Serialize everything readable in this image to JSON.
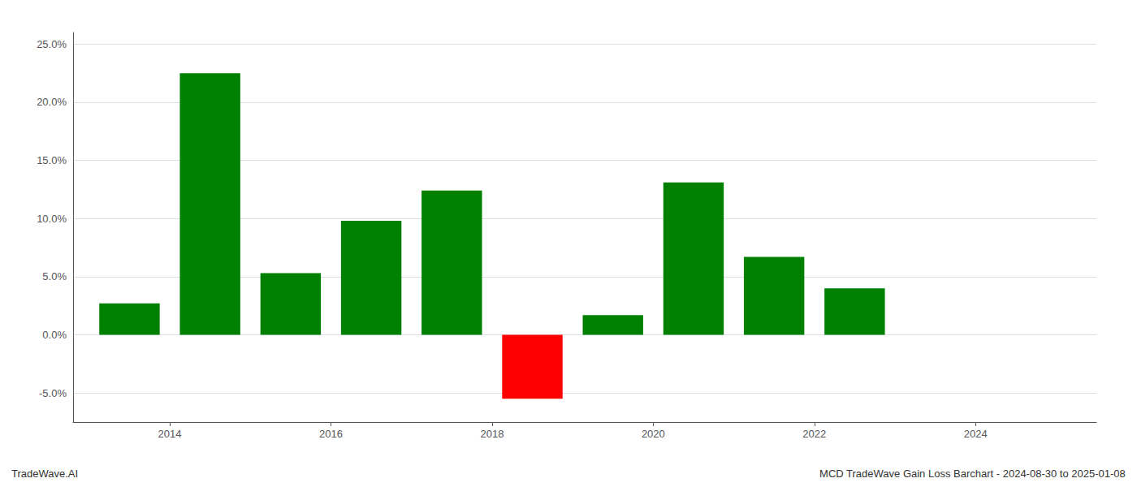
{
  "chart_data": {
    "type": "bar",
    "title": "MCD TradeWave Gain Loss Barchart - 2024-08-30 to 2025-01-08",
    "annotations": [
      "TradeWave.AI"
    ],
    "x": [
      2013.5,
      2014.5,
      2015.5,
      2016.5,
      2017.5,
      2018.5,
      2019.5,
      2020.5,
      2021.5,
      2022.5
    ],
    "values": [
      2.7,
      22.5,
      5.3,
      9.8,
      12.4,
      -5.5,
      1.7,
      13.1,
      6.7,
      4.0
    ],
    "colors": [
      "#008000",
      "#008000",
      "#008000",
      "#008000",
      "#008000",
      "#ff0000",
      "#008000",
      "#008000",
      "#008000",
      "#008000"
    ],
    "xlim": [
      2012.8,
      2025.5
    ],
    "xticks": [
      2014,
      2016,
      2018,
      2020,
      2022,
      2024
    ],
    "ylim": [
      -7.5,
      26
    ],
    "yticks": [
      {
        "value": -5.0,
        "label": "-5.0%"
      },
      {
        "value": 0.0,
        "label": "0.0%"
      },
      {
        "value": 5.0,
        "label": "5.0%"
      },
      {
        "value": 10.0,
        "label": "10.0%"
      },
      {
        "value": 15.0,
        "label": "15.0%"
      },
      {
        "value": 20.0,
        "label": "20.0%"
      },
      {
        "value": 25.0,
        "label": "25.0%"
      }
    ],
    "grid": true
  }
}
